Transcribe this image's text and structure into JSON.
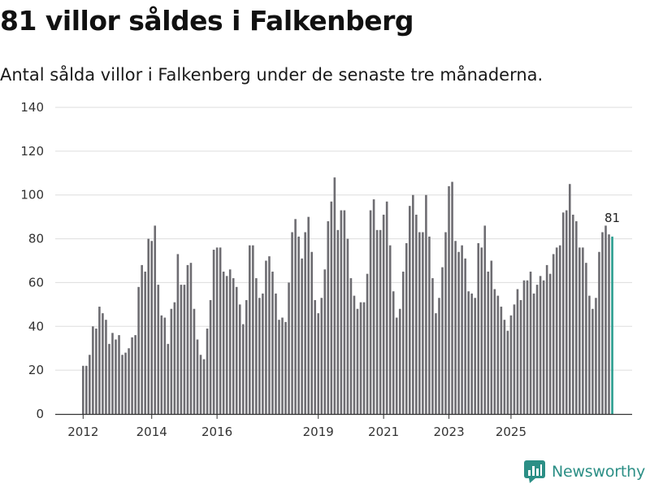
{
  "header": {
    "title": "81 villor såldes i Falkenberg",
    "subtitle": "Antal sålda villor i Falkenberg under de senaste tre månaderna."
  },
  "brand": {
    "name": "Newsworthy",
    "color": "#2c8f86"
  },
  "colors": {
    "bar": "#6e6d72",
    "highlight": "#2a9d8f",
    "grid": "#dddddd",
    "axis": "#333333"
  },
  "chart_data": {
    "type": "bar",
    "title": "81 villor såldes i Falkenberg",
    "subtitle": "Antal sålda villor i Falkenberg under de senaste tre månaderna.",
    "xlabel": "",
    "ylabel": "",
    "ylim": [
      0,
      140
    ],
    "yticks": [
      0,
      20,
      40,
      60,
      80,
      100,
      120,
      140
    ],
    "xticks": [
      {
        "label": "2012",
        "index": 0
      },
      {
        "label": "2014",
        "index": 21
      },
      {
        "label": "2016",
        "index": 41
      },
      {
        "label": "2019",
        "index": 72
      },
      {
        "label": "2021",
        "index": 92
      },
      {
        "label": "2023",
        "index": 112
      },
      {
        "label": "2025",
        "index": 131
      }
    ],
    "grid": true,
    "highlight_last": true,
    "last_value_label": "81",
    "values": [
      22,
      22,
      27,
      40,
      39,
      49,
      46,
      43,
      32,
      37,
      34,
      36,
      27,
      28,
      30,
      35,
      36,
      58,
      68,
      65,
      80,
      79,
      86,
      59,
      45,
      44,
      32,
      48,
      51,
      73,
      59,
      59,
      68,
      69,
      48,
      34,
      27,
      25,
      39,
      52,
      75,
      76,
      76,
      65,
      63,
      66,
      62,
      58,
      50,
      41,
      52,
      77,
      77,
      62,
      53,
      55,
      70,
      72,
      65,
      55,
      43,
      44,
      42,
      60,
      83,
      89,
      81,
      71,
      83,
      90,
      74,
      52,
      46,
      53,
      66,
      88,
      97,
      108,
      84,
      93,
      93,
      80,
      62,
      54,
      48,
      51,
      51,
      64,
      93,
      98,
      84,
      84,
      91,
      97,
      77,
      56,
      44,
      48,
      65,
      78,
      95,
      100,
      91,
      83,
      83,
      100,
      81,
      62,
      46,
      53,
      67,
      83,
      104,
      106,
      79,
      74,
      77,
      71,
      56,
      55,
      53,
      78,
      76,
      86,
      65,
      70,
      57,
      54,
      49,
      43,
      38,
      45,
      50,
      57,
      52,
      61,
      61,
      65,
      55,
      59,
      63,
      61,
      68,
      64,
      73,
      76,
      77,
      92,
      93,
      105,
      91,
      88,
      76,
      76,
      69,
      54,
      48,
      53,
      74,
      83,
      86,
      82,
      81
    ]
  }
}
